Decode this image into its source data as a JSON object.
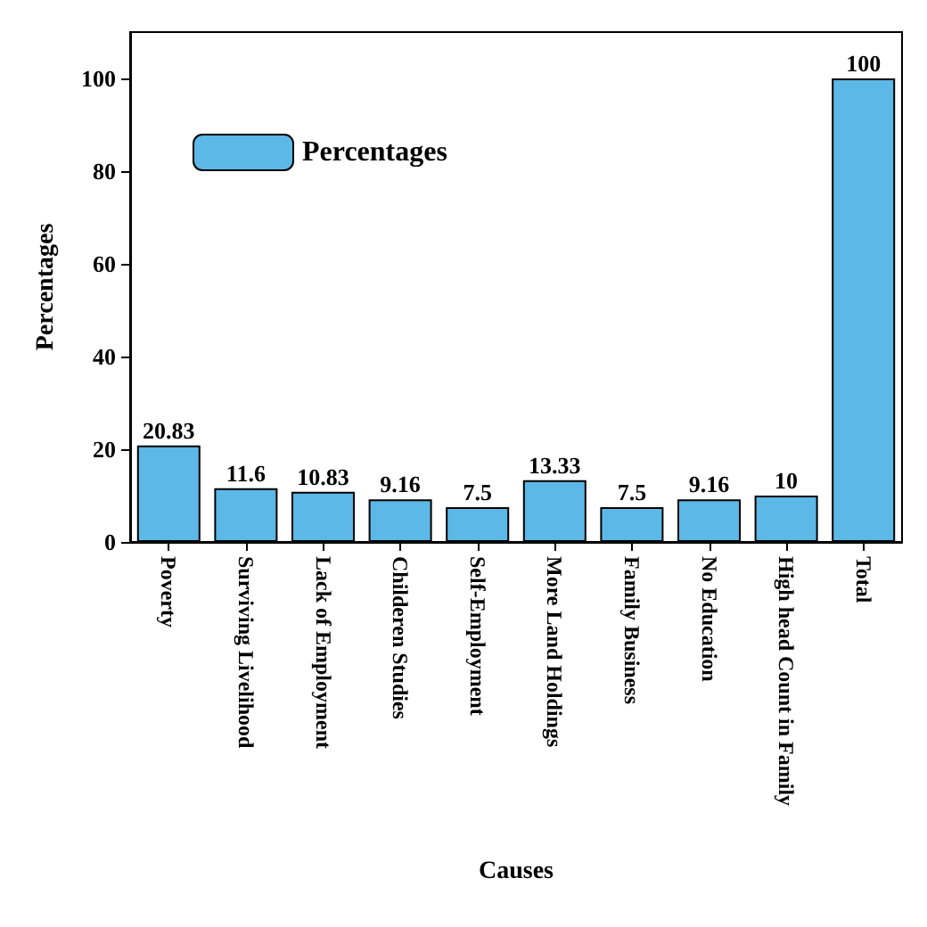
{
  "chart_data": {
    "type": "bar",
    "xlabel": "Causes",
    "ylabel": "Percentages",
    "categories": [
      "Poverty",
      "Surviving Livelihood",
      "Lack of Employment",
      "Childeren Studies",
      "Self-Employment",
      "More Land Holdings",
      "Family Business",
      "No Education",
      "High head Count in Family",
      "Total"
    ],
    "series": [
      {
        "name": "Percentages",
        "color": "#5cb8e6",
        "values": [
          20.83,
          11.6,
          10.83,
          9.16,
          7.5,
          13.33,
          7.5,
          9.16,
          10,
          100
        ]
      }
    ],
    "ylim": [
      0,
      110
    ],
    "yticks": [
      0,
      20,
      40,
      60,
      80,
      100
    ],
    "data_labels": true,
    "legend": "top left",
    "grid": false
  }
}
